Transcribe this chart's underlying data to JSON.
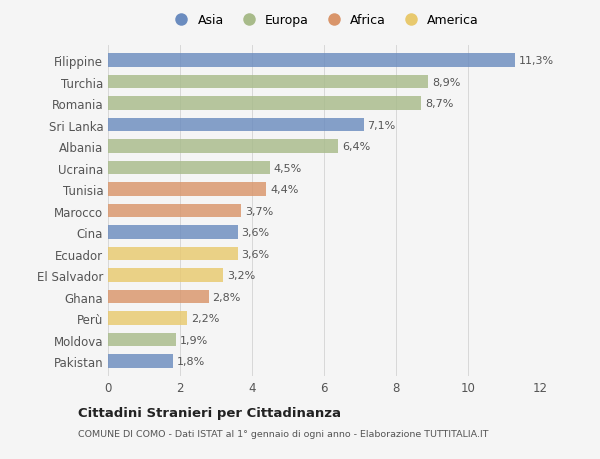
{
  "categories": [
    "Filippine",
    "Turchia",
    "Romania",
    "Sri Lanka",
    "Albania",
    "Ucraina",
    "Tunisia",
    "Marocco",
    "Cina",
    "Ecuador",
    "El Salvador",
    "Ghana",
    "Perù",
    "Moldova",
    "Pakistan"
  ],
  "values": [
    11.3,
    8.9,
    8.7,
    7.1,
    6.4,
    4.5,
    4.4,
    3.7,
    3.6,
    3.6,
    3.2,
    2.8,
    2.2,
    1.9,
    1.8
  ],
  "labels": [
    "11,3%",
    "8,9%",
    "8,7%",
    "7,1%",
    "6,4%",
    "4,5%",
    "4,4%",
    "3,7%",
    "3,6%",
    "3,6%",
    "3,2%",
    "2,8%",
    "2,2%",
    "1,9%",
    "1,8%"
  ],
  "colors": [
    "#6b8cbf",
    "#a8bb8a",
    "#a8bb8a",
    "#6b8cbf",
    "#a8bb8a",
    "#a8bb8a",
    "#d9956a",
    "#d9956a",
    "#6b8cbf",
    "#e8c96e",
    "#e8c96e",
    "#d9956a",
    "#e8c96e",
    "#a8bb8a",
    "#6b8cbf"
  ],
  "legend_labels": [
    "Asia",
    "Europa",
    "Africa",
    "America"
  ],
  "legend_colors": [
    "#6b8cbf",
    "#a8bb8a",
    "#d9956a",
    "#e8c96e"
  ],
  "title": "Cittadini Stranieri per Cittadinanza",
  "subtitle": "COMUNE DI COMO - Dati ISTAT al 1° gennaio di ogni anno - Elaborazione TUTTITALIA.IT",
  "xlim": [
    0,
    12
  ],
  "xticks": [
    0,
    2,
    4,
    6,
    8,
    10,
    12
  ],
  "background_color": "#f5f5f5",
  "grid_color": "#d8d8d8",
  "text_color": "#555555",
  "bar_height": 0.62,
  "label_fontsize": 8,
  "tick_fontsize": 8.5,
  "legend_fontsize": 9
}
